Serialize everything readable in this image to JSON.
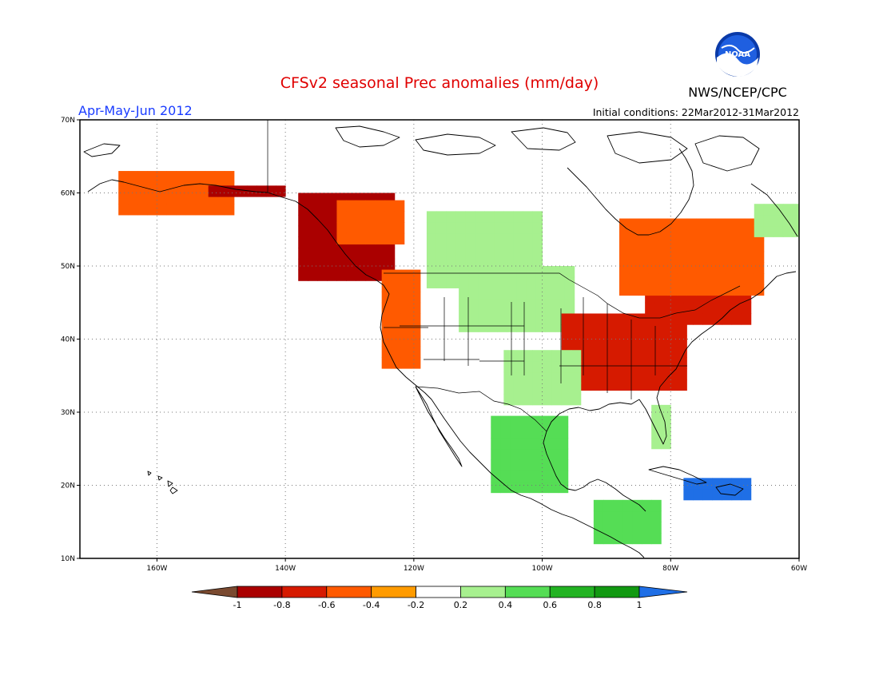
{
  "title": "CFSv2 seasonal Prec anomalies (mm/day)",
  "period": "Apr-May-Jun 2012",
  "initial_conditions": "Initial conditions: 22Mar2012-31Mar2012",
  "agency": "NWS/NCEP/CPC",
  "logo_text": "NOAA",
  "map": {
    "lon_range": [
      -172,
      -60
    ],
    "lat_range": [
      10,
      70
    ],
    "lat_ticks": [
      "10N",
      "20N",
      "30N",
      "40N",
      "50N",
      "60N",
      "70N"
    ],
    "lon_ticks": [
      "160W",
      "140W",
      "120W",
      "100W",
      "80W",
      "60W"
    ],
    "grid": "dotted"
  },
  "colorbar": {
    "labels": [
      "-1",
      "-0.8",
      "-0.6",
      "-0.4",
      "-0.2",
      "0.2",
      "0.4",
      "0.6",
      "0.8",
      "1"
    ],
    "colors": [
      "#7a4a30",
      "#aa0000",
      "#d61a00",
      "#ff5a00",
      "#ff9b00",
      "#ffffff",
      "#a7f08f",
      "#55dd55",
      "#22b322",
      "#119911",
      "#1f6fe6"
    ]
  },
  "anomaly_regions": [
    {
      "name": "alaska-south-coast",
      "level": -0.4,
      "lon": [
        -166,
        -148
      ],
      "lat": [
        57,
        63
      ]
    },
    {
      "name": "alaska-gulf-core",
      "level": -0.8,
      "lon": [
        -152,
        -140
      ],
      "lat": [
        59.5,
        61
      ]
    },
    {
      "name": "bc-pacific-coast",
      "level": -0.8,
      "lon": [
        -138,
        -124
      ],
      "lat": [
        48,
        60
      ]
    },
    {
      "name": "canadian-rockies",
      "level": -0.4,
      "lon": [
        -132,
        -122
      ],
      "lat": [
        53,
        58
      ]
    },
    {
      "name": "canadian-prairies",
      "level": 0.2,
      "lon": [
        -118,
        -100
      ],
      "lat": [
        47,
        57
      ]
    },
    {
      "name": "us-west-coast",
      "level": -0.4,
      "lon": [
        -125,
        -119
      ],
      "lat": [
        36,
        49
      ]
    },
    {
      "name": "great-plains-north",
      "level": 0.2,
      "lon": [
        -113,
        -96
      ],
      "lat": [
        41,
        49
      ]
    },
    {
      "name": "midwest-ohio-valley",
      "level": -0.6,
      "lon": [
        -97,
        -78
      ],
      "lat": [
        33,
        43
      ]
    },
    {
      "name": "great-lakes-quebec",
      "level": -0.6,
      "lon": [
        -84,
        -68
      ],
      "lat": [
        42,
        50
      ]
    },
    {
      "name": "hudson-bay-south",
      "level": -0.4,
      "lon": [
        -88,
        -66
      ],
      "lat": [
        46,
        56
      ]
    },
    {
      "name": "southern-plains",
      "level": 0.2,
      "lon": [
        -106,
        -95
      ],
      "lat": [
        31,
        38
      ]
    },
    {
      "name": "mexico-sierra-madre",
      "level": 0.4,
      "lon": [
        -108,
        -96
      ],
      "lat": [
        19,
        29
      ]
    },
    {
      "name": "florida",
      "level": 0.2,
      "lon": [
        -83,
        -80
      ],
      "lat": [
        25,
        31
      ]
    },
    {
      "name": "central-america",
      "level": 0.4,
      "lon": [
        -92,
        -82
      ],
      "lat": [
        12,
        18
      ]
    },
    {
      "name": "caribbean-islands",
      "level": 1.0,
      "lon": [
        -78,
        -68
      ],
      "lat": [
        18,
        20
      ]
    },
    {
      "name": "labrador",
      "level": 0.2,
      "lon": [
        -67,
        -60
      ],
      "lat": [
        54,
        58
      ]
    }
  ]
}
